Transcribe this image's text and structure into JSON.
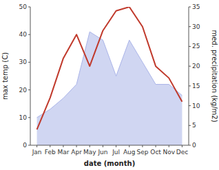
{
  "chart_data": {
    "type": "line",
    "categories": [
      "Jan",
      "Feb",
      "Mar",
      "Apr",
      "May",
      "Jun",
      "Jul",
      "Aug",
      "Sep",
      "Oct",
      "Nov",
      "Dec"
    ],
    "xlabel": "date (month)",
    "ylabel": "max temp (C)",
    "y2label": "med. precipitation (kg/m2)",
    "ylim": [
      0,
      50
    ],
    "yticks": [
      0,
      10,
      20,
      30,
      40,
      50
    ],
    "y2lim": [
      0,
      35
    ],
    "y2ticks": [
      0,
      5,
      10,
      15,
      20,
      25,
      30,
      35
    ],
    "grid": false,
    "series": [
      {
        "type": "area",
        "color": "#aab4e8",
        "values": [
          10,
          13,
          17,
          22,
          41,
          38,
          25,
          38,
          30,
          22,
          22,
          18
        ]
      },
      {
        "type": "line",
        "color": "#c0392b",
        "axis": "y2",
        "values": [
          4,
          12,
          22,
          28,
          20,
          29,
          34,
          35,
          30,
          20,
          17,
          11
        ]
      }
    ]
  }
}
